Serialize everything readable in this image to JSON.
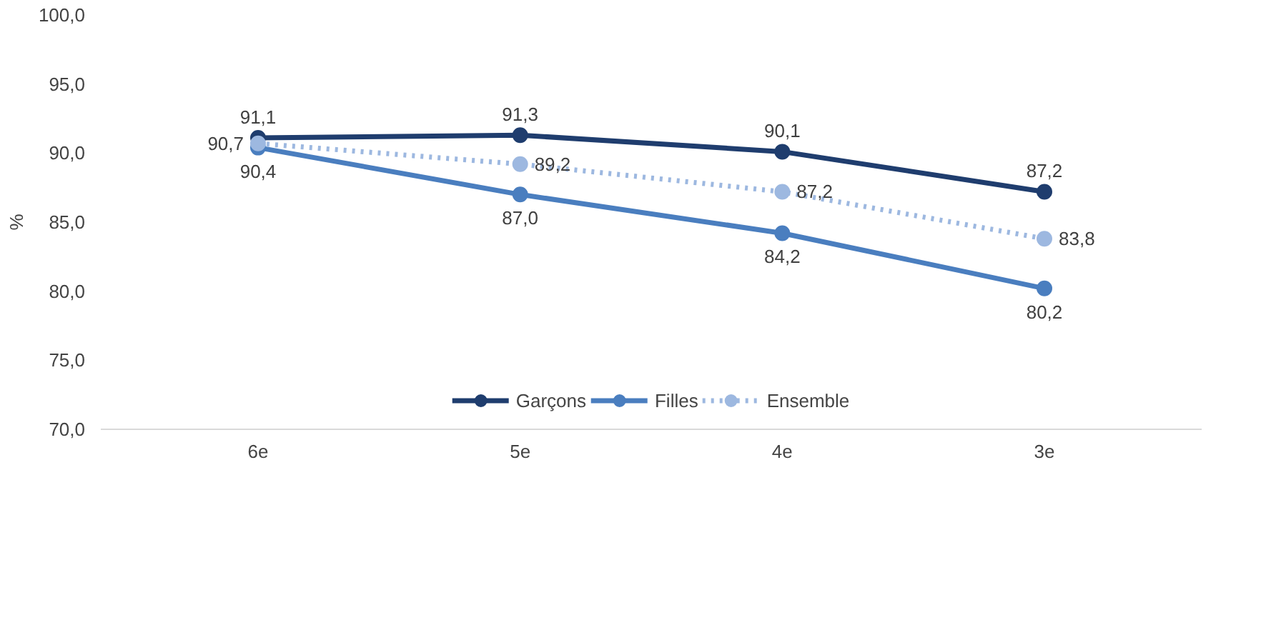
{
  "chart_data": {
    "type": "line",
    "ylabel": "%",
    "categories": [
      "6e",
      "5e",
      "4e",
      "3e"
    ],
    "ylim": [
      70,
      100
    ],
    "yticks": [
      {
        "value": 70,
        "label": "70,0"
      },
      {
        "value": 75,
        "label": "75,0"
      },
      {
        "value": 80,
        "label": "80,0"
      },
      {
        "value": 85,
        "label": "85,0"
      },
      {
        "value": 90,
        "label": "90,0"
      },
      {
        "value": 95,
        "label": "95,0"
      },
      {
        "value": 100,
        "label": "100,0"
      }
    ],
    "grid": false,
    "legend": "bottom",
    "marker": "circle",
    "series": [
      {
        "name": "Garçons",
        "color": "#1f3d6e",
        "line_style": "solid",
        "values": [
          91.1,
          91.3,
          90.1,
          87.2
        ],
        "value_labels": [
          "91,1",
          "91,3",
          "90,1",
          "87,2"
        ]
      },
      {
        "name": "Filles",
        "color": "#4a7ebf",
        "line_style": "solid",
        "values": [
          90.4,
          87.0,
          84.2,
          80.2
        ],
        "value_labels": [
          "90,4",
          "87,0",
          "84,2",
          "80,2"
        ]
      },
      {
        "name": "Ensemble",
        "color": "#9db8e0",
        "line_style": "dotted",
        "values": [
          90.7,
          89.2,
          87.2,
          83.8
        ],
        "value_labels": [
          "90,7",
          "89,2",
          "87,2",
          "83,8"
        ]
      }
    ]
  }
}
